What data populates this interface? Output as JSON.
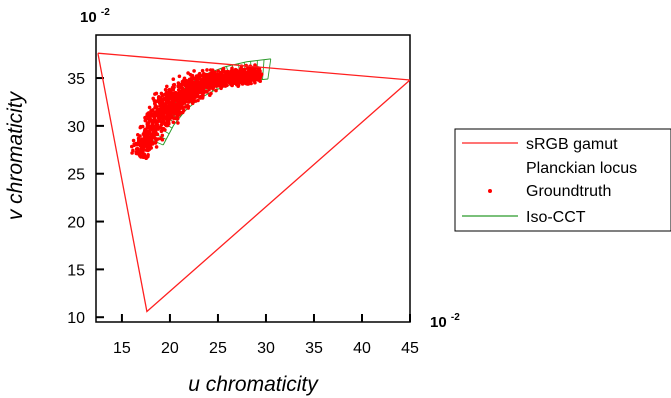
{
  "chart_data": {
    "type": "scatter",
    "xlabel": "u chromaticity",
    "ylabel": "v chromaticity",
    "x_multiplier_label": "10",
    "y_multiplier_label": "10",
    "multiplier_exponent": "-2",
    "xlim": [
      12.3,
      45
    ],
    "ylim": [
      9.5,
      39.5
    ],
    "x_ticks": [
      15,
      20,
      25,
      30,
      35,
      40,
      45
    ],
    "y_ticks": [
      10,
      15,
      20,
      25,
      30,
      35
    ],
    "legend_position": "right",
    "legend": [
      {
        "label": "sRGB gamut",
        "marker": "line",
        "color": "#ff2020"
      },
      {
        "label": "Planckian locus",
        "marker": "none",
        "color": "#000000"
      },
      {
        "label": "Groundtruth",
        "marker": "dot",
        "color": "#ff0000"
      },
      {
        "label": "Iso-CCT",
        "marker": "line",
        "color": "#2a9a2a"
      }
    ],
    "series": [
      {
        "name": "sRGB gamut",
        "color": "#ff2020",
        "points": [
          [
            12.5,
            37.6
          ],
          [
            45.0,
            34.8
          ],
          [
            17.6,
            10.6
          ],
          [
            12.5,
            37.6
          ]
        ]
      },
      {
        "name": "Iso-CCT",
        "color": "#2a9a2a",
        "inner": [
          [
            19.3,
            28.0
          ],
          [
            20.4,
            30.1
          ],
          [
            21.6,
            31.6
          ],
          [
            23.0,
            32.8
          ],
          [
            24.6,
            33.7
          ],
          [
            26.3,
            34.3
          ],
          [
            28.2,
            34.7
          ],
          [
            30.2,
            34.9
          ]
        ],
        "outer": [
          [
            17.9,
            28.6
          ],
          [
            19.1,
            31.0
          ],
          [
            20.4,
            32.8
          ],
          [
            21.9,
            34.3
          ],
          [
            23.7,
            35.4
          ],
          [
            25.8,
            36.2
          ],
          [
            28.0,
            36.7
          ],
          [
            30.5,
            37.0
          ]
        ],
        "line_count": 26
      },
      {
        "name": "Groundtruth",
        "color": "#ff0000",
        "band": [
          [
            16.8,
            26.8
          ],
          [
            17.8,
            29.0
          ],
          [
            19.0,
            31.0
          ],
          [
            20.2,
            32.4
          ],
          [
            21.6,
            33.5
          ],
          [
            23.2,
            34.4
          ],
          [
            25.2,
            35.0
          ],
          [
            27.4,
            35.2
          ],
          [
            29.3,
            35.4
          ]
        ],
        "band_width": 2.2,
        "point_count": 1400
      }
    ]
  }
}
